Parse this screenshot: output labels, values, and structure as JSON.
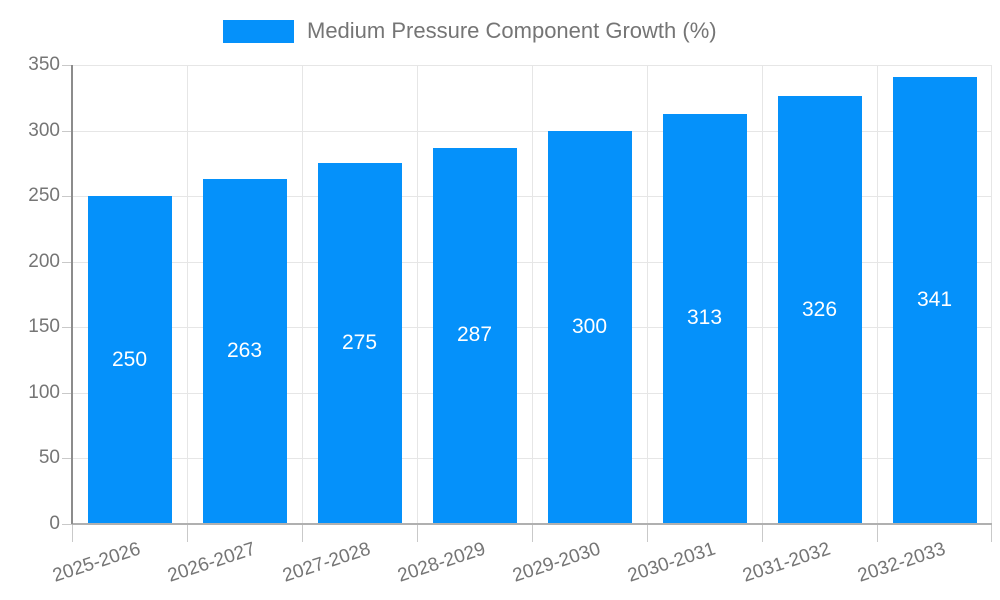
{
  "chart_data": {
    "type": "bar",
    "title": "",
    "legend": "Medium Pressure Component Growth (%)",
    "legend_position": "top",
    "categories": [
      "2025-2026",
      "2026-2027",
      "2027-2028",
      "2028-2029",
      "2029-2030",
      "2030-2031",
      "2031-2032",
      "2032-2033"
    ],
    "values": [
      250,
      263,
      275,
      287,
      300,
      313,
      326,
      341
    ],
    "bar_labels": [
      "250",
      "263",
      "275",
      "287",
      "300",
      "313",
      "326",
      "341"
    ],
    "xlabel": "",
    "ylabel": "",
    "ylim": [
      0,
      350
    ],
    "yticks": [
      0,
      50,
      100,
      150,
      200,
      250,
      300,
      350
    ],
    "grid": true,
    "colors": {
      "bar": "#0591fa",
      "bar_label": "#ffffff",
      "axis_text": "#757575",
      "gridline": "#e6e6e6",
      "axis_line": "#8c8c8c",
      "baseline": "#b0b0b0",
      "tick": "#c9c9c9",
      "background": "#ffffff"
    }
  }
}
